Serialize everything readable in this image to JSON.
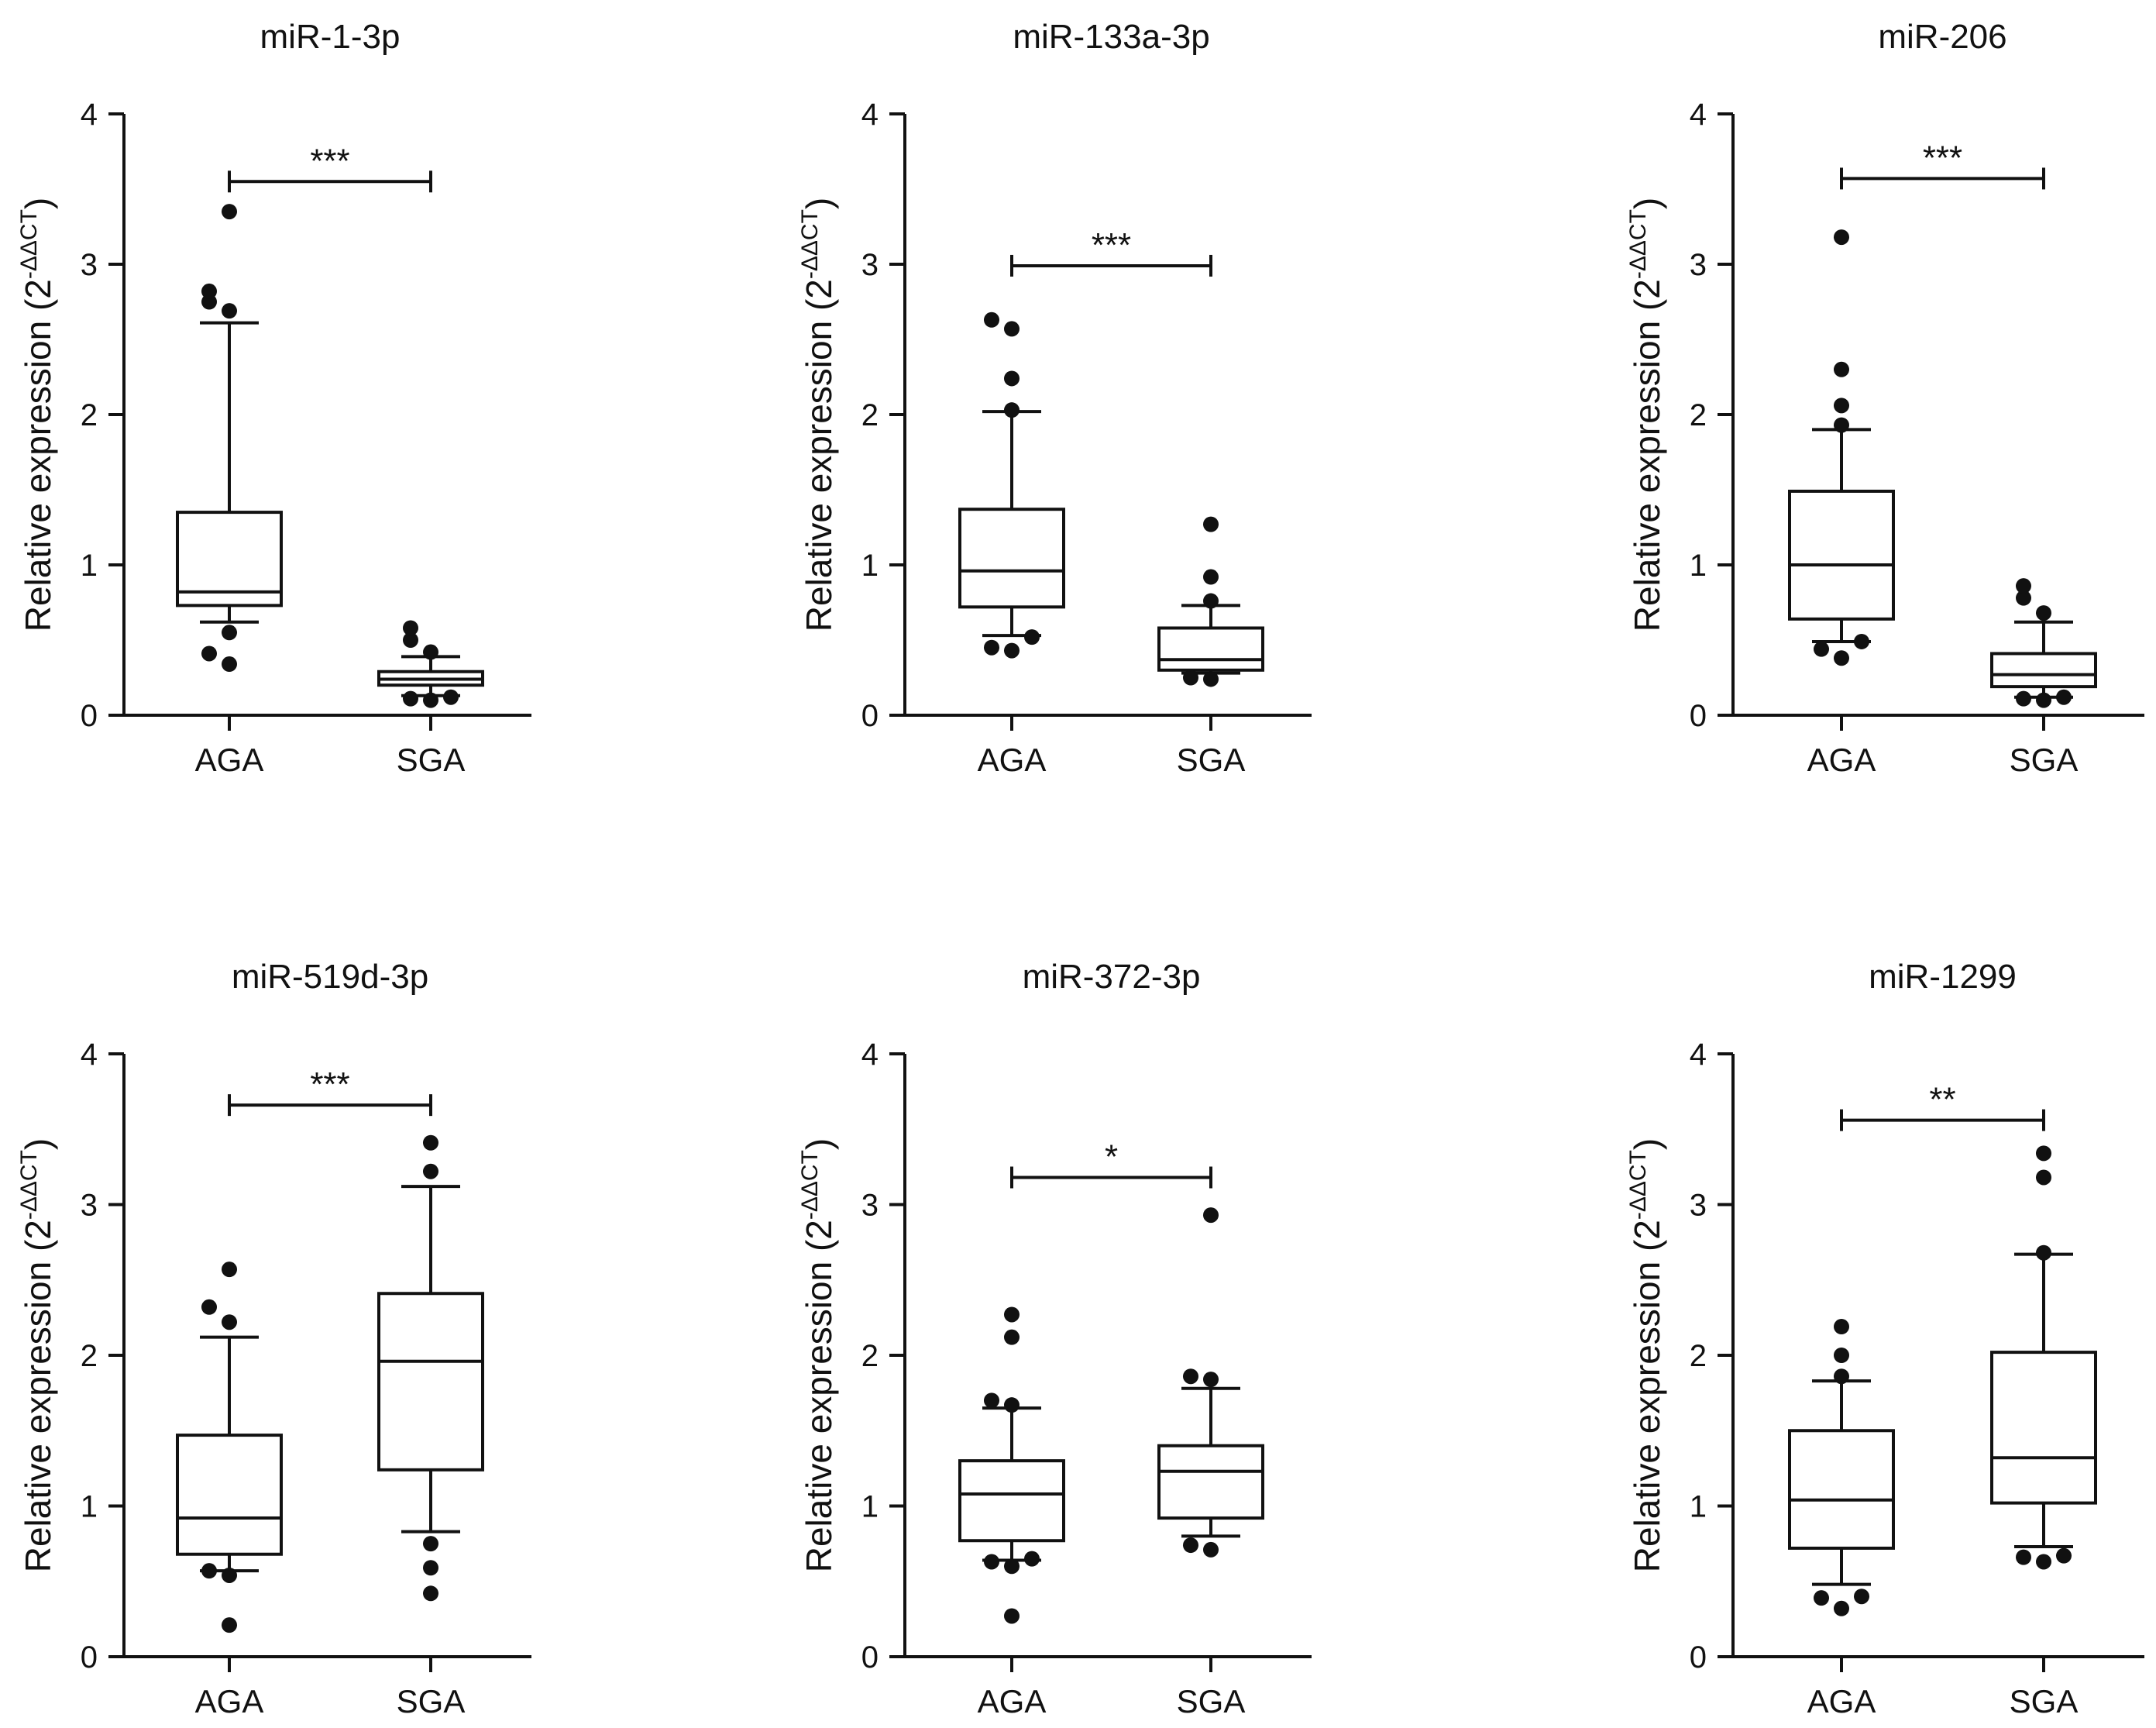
{
  "chart_data": [
    {
      "type": "box",
      "title": "miR-1-3p",
      "ylabel": "Relative expression (2",
      "ylabel_sup": "-ΔΔCT",
      "ylabel_close": ")",
      "ylim": [
        0,
        4
      ],
      "yticks": [
        "0",
        "1",
        "2",
        "3",
        "4"
      ],
      "categories": [
        "AGA",
        "SGA"
      ],
      "boxes": [
        {
          "min": 0.62,
          "q1": 0.73,
          "median": 0.82,
          "q3": 1.35,
          "max": 2.61,
          "outliers": [
            0.34,
            0.41,
            0.55,
            2.69,
            2.75,
            2.82,
            3.35
          ]
        },
        {
          "min": 0.13,
          "q1": 0.2,
          "median": 0.24,
          "q3": 0.29,
          "max": 0.39,
          "outliers": [
            0.1,
            0.11,
            0.12,
            0.42,
            0.5,
            0.58
          ]
        }
      ],
      "significance": {
        "label": "***",
        "y": 3.55
      }
    },
    {
      "type": "box",
      "title": "miR-133a-3p",
      "ylabel": "Relative expression (2",
      "ylabel_sup": "-ΔΔCT",
      "ylabel_close": ")",
      "ylim": [
        0,
        4
      ],
      "yticks": [
        "0",
        "1",
        "2",
        "3",
        "4"
      ],
      "categories": [
        "AGA",
        "SGA"
      ],
      "boxes": [
        {
          "min": 0.53,
          "q1": 0.72,
          "median": 0.96,
          "q3": 1.37,
          "max": 2.02,
          "outliers": [
            0.43,
            0.45,
            0.52,
            2.03,
            2.24,
            2.57,
            2.63
          ]
        },
        {
          "min": 0.28,
          "q1": 0.3,
          "median": 0.37,
          "q3": 0.58,
          "max": 0.73,
          "outliers": [
            0.24,
            0.25,
            0.76,
            0.92,
            1.27
          ]
        }
      ],
      "significance": {
        "label": "***",
        "y": 2.99
      }
    },
    {
      "type": "box",
      "title": "miR-206",
      "ylabel": "Relative expression (2",
      "ylabel_sup": "-ΔΔCT",
      "ylabel_close": ")",
      "ylim": [
        0,
        4
      ],
      "yticks": [
        "0",
        "1",
        "2",
        "3",
        "4"
      ],
      "categories": [
        "AGA",
        "SGA"
      ],
      "boxes": [
        {
          "min": 0.49,
          "q1": 0.64,
          "median": 1.0,
          "q3": 1.49,
          "max": 1.9,
          "outliers": [
            0.38,
            0.44,
            0.49,
            1.93,
            2.06,
            2.3,
            3.18
          ]
        },
        {
          "min": 0.12,
          "q1": 0.19,
          "median": 0.27,
          "q3": 0.41,
          "max": 0.62,
          "outliers": [
            0.1,
            0.11,
            0.12,
            0.68,
            0.78,
            0.86
          ]
        }
      ],
      "significance": {
        "label": "***",
        "y": 3.57
      }
    },
    {
      "type": "box",
      "title": "miR-519d-3p",
      "ylabel": "Relative expression (2",
      "ylabel_sup": "-ΔΔCT",
      "ylabel_close": ")",
      "ylim": [
        0,
        4
      ],
      "yticks": [
        "0",
        "1",
        "2",
        "3",
        "4"
      ],
      "categories": [
        "AGA",
        "SGA"
      ],
      "boxes": [
        {
          "min": 0.57,
          "q1": 0.68,
          "median": 0.92,
          "q3": 1.47,
          "max": 2.12,
          "outliers": [
            0.21,
            0.54,
            0.57,
            2.22,
            2.32,
            2.57
          ]
        },
        {
          "min": 0.83,
          "q1": 1.24,
          "median": 1.96,
          "q3": 2.41,
          "max": 3.12,
          "outliers": [
            0.42,
            0.59,
            0.75,
            3.22,
            3.41
          ]
        }
      ],
      "significance": {
        "label": "***",
        "y": 3.66
      }
    },
    {
      "type": "box",
      "title": "miR-372-3p",
      "ylabel": "Relative expression (2",
      "ylabel_sup": "-ΔΔCT",
      "ylabel_close": ")",
      "ylim": [
        0,
        4
      ],
      "yticks": [
        "0",
        "1",
        "2",
        "3",
        "4"
      ],
      "categories": [
        "AGA",
        "SGA"
      ],
      "boxes": [
        {
          "min": 0.64,
          "q1": 0.77,
          "median": 1.08,
          "q3": 1.3,
          "max": 1.65,
          "outliers": [
            0.27,
            0.6,
            0.63,
            0.65,
            1.67,
            1.7,
            2.12,
            2.27
          ]
        },
        {
          "min": 0.8,
          "q1": 0.92,
          "median": 1.23,
          "q3": 1.4,
          "max": 1.78,
          "outliers": [
            0.71,
            0.74,
            1.84,
            1.86,
            2.93
          ]
        }
      ],
      "significance": {
        "label": "*",
        "y": 3.18
      }
    },
    {
      "type": "box",
      "title": "miR-1299",
      "ylabel": "Relative expression (2",
      "ylabel_sup": "-ΔΔCT",
      "ylabel_close": ")",
      "ylim": [
        0,
        4
      ],
      "yticks": [
        "0",
        "1",
        "2",
        "3",
        "4"
      ],
      "categories": [
        "AGA",
        "SGA"
      ],
      "boxes": [
        {
          "min": 0.48,
          "q1": 0.72,
          "median": 1.04,
          "q3": 1.5,
          "max": 1.83,
          "outliers": [
            0.32,
            0.39,
            0.4,
            1.86,
            2.0,
            2.19
          ]
        },
        {
          "min": 0.73,
          "q1": 1.02,
          "median": 1.32,
          "q3": 2.02,
          "max": 2.67,
          "outliers": [
            0.63,
            0.66,
            0.67,
            2.68,
            3.18,
            3.34
          ]
        }
      ],
      "significance": {
        "label": "**",
        "y": 3.56
      }
    }
  ]
}
